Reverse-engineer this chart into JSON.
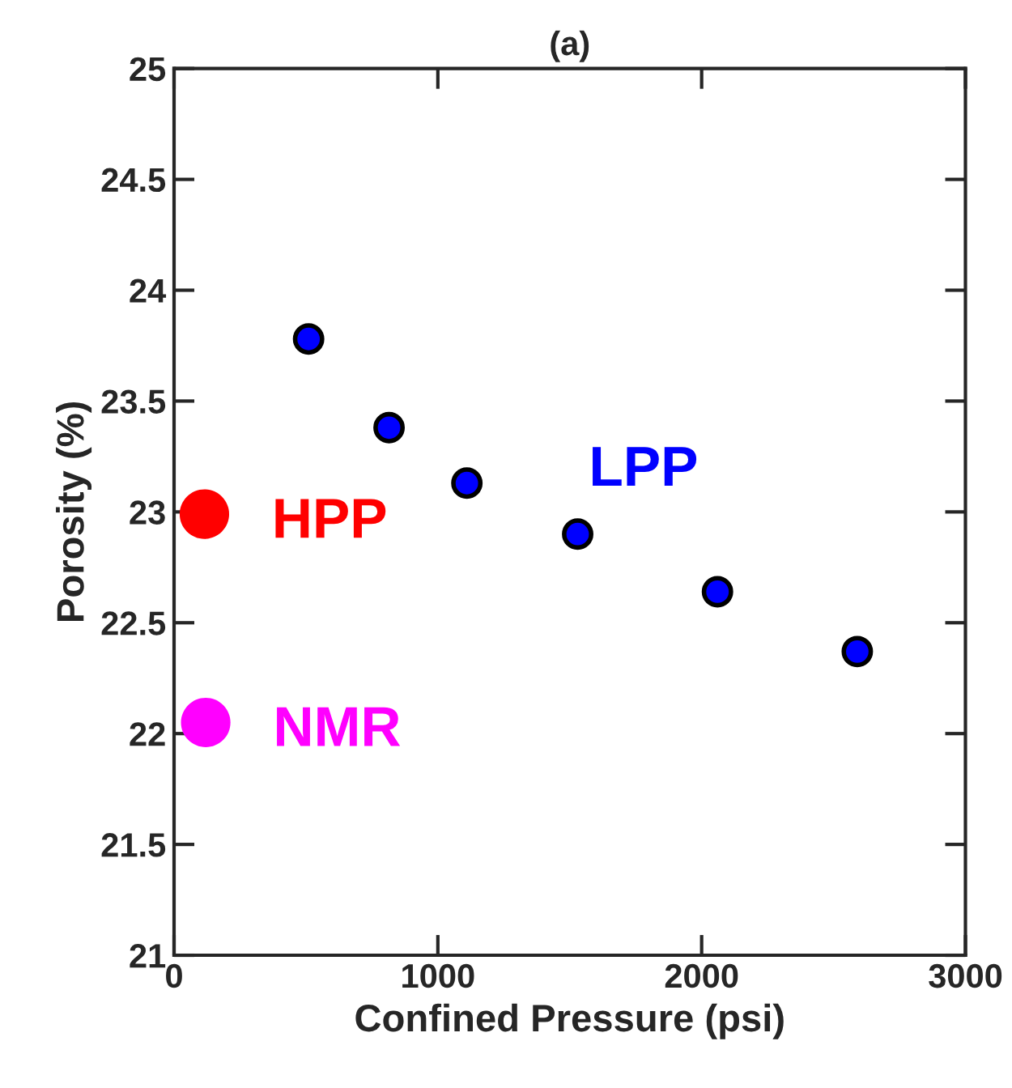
{
  "chart_data": {
    "type": "scatter",
    "title": "(a)",
    "xlabel": "Confined Pressure (psi)",
    "ylabel": "Porosity (%)",
    "xlim": [
      0,
      3000
    ],
    "xticks": [
      0,
      1000,
      2000,
      3000
    ],
    "ylim": [
      21,
      25
    ],
    "yticks": [
      21,
      21.5,
      22,
      22.5,
      23,
      23.5,
      24,
      24.5,
      25
    ],
    "marker": "circle",
    "grid": false,
    "legend": false,
    "series": [
      {
        "name": "LPP",
        "color": "#0000ff",
        "x": [
          510,
          815,
          1110,
          1530,
          2060,
          2590
        ],
        "values": [
          23.78,
          23.38,
          23.13,
          22.9,
          22.64,
          22.37
        ]
      },
      {
        "name": "HPP",
        "color": "#ff0000",
        "x": [
          115
        ],
        "values": [
          22.99
        ]
      },
      {
        "name": "NMR",
        "color": "#ff00ff",
        "x": [
          120
        ],
        "values": [
          22.05
        ]
      }
    ]
  }
}
